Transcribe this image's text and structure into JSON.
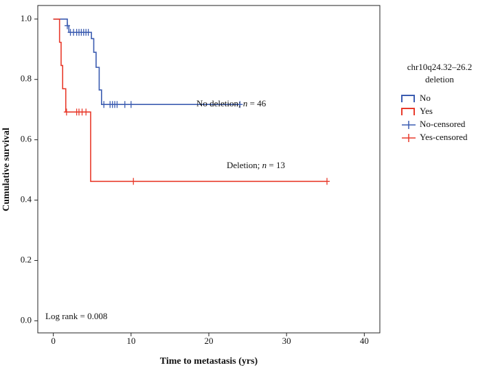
{
  "chart_data": {
    "type": "kaplan-meier",
    "x_label": "Time to metastasis (yrs)",
    "y_label": "Cumulative survival",
    "xlim": [
      -2,
      42
    ],
    "ylim": [
      -0.04,
      1.045
    ],
    "xticks": [
      0,
      10,
      20,
      30,
      40
    ],
    "yticks": [
      {
        "value": 0,
        "label": "0.0"
      },
      {
        "value": 0.2,
        "label": "0.2"
      },
      {
        "value": 0.4,
        "label": "0.4"
      },
      {
        "value": 0.6,
        "label": "0.6"
      },
      {
        "value": 0.8,
        "label": "0.8"
      },
      {
        "value": 1,
        "label": "1.0"
      }
    ],
    "grid": false,
    "legend_title": [
      "chr10q24.32–26.2",
      "deletion"
    ],
    "series": [
      {
        "name": "No",
        "kind": "step",
        "color": "#3a5bb0",
        "x": [
          0,
          1.8,
          2.0,
          4.9,
          5.2,
          5.5,
          5.9,
          6.2,
          24.0
        ],
        "values": [
          1.0,
          0.978,
          0.956,
          0.935,
          0.89,
          0.84,
          0.765,
          0.717,
          0.717
        ]
      },
      {
        "name": "Yes",
        "kind": "step",
        "color": "#e8392a",
        "x": [
          0,
          0.8,
          1.0,
          1.2,
          1.6,
          4.8,
          35.2
        ],
        "values": [
          1.0,
          0.923,
          0.846,
          0.769,
          0.692,
          0.462,
          0.462
        ]
      },
      {
        "name": "No-censored",
        "kind": "censor",
        "color": "#3a5bb0",
        "x": [
          1.8,
          2.2,
          2.6,
          3.0,
          3.3,
          3.6,
          3.9,
          4.2,
          4.5,
          6.5,
          7.3,
          7.6,
          7.9,
          8.2,
          9.2,
          10.0,
          24.0
        ],
        "values": [
          0.978,
          0.956,
          0.956,
          0.956,
          0.956,
          0.956,
          0.956,
          0.956,
          0.956,
          0.717,
          0.717,
          0.717,
          0.717,
          0.717,
          0.717,
          0.717,
          0.717
        ]
      },
      {
        "name": "Yes-censored",
        "kind": "censor",
        "color": "#e8392a",
        "x": [
          1.7,
          3.0,
          3.3,
          3.7,
          4.2,
          10.3,
          35.2
        ],
        "values": [
          0.692,
          0.692,
          0.692,
          0.692,
          0.692,
          0.462,
          0.462
        ]
      }
    ],
    "annotations": [
      [
        "No deletion; ",
        "n",
        " = 46"
      ],
      [
        "Deletion; ",
        "n",
        " = 13"
      ],
      [
        "Log rank = 0.008"
      ]
    ]
  }
}
